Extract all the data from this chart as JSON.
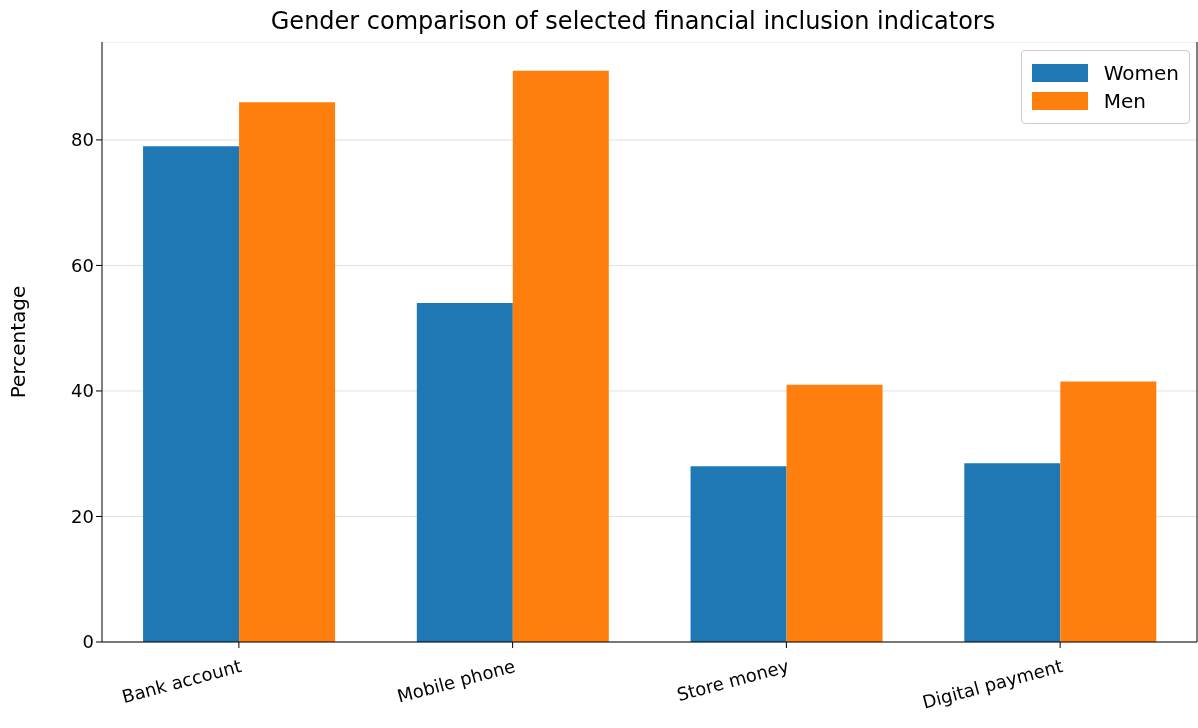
{
  "chart_data": {
    "type": "bar",
    "title": "Gender comparison of selected financial inclusion indicators",
    "ylabel": "Percentage",
    "categories": [
      "Bank account",
      "Mobile phone",
      "Store money",
      "Digital payment"
    ],
    "series": [
      {
        "name": "Women",
        "color": "#1f77b4",
        "values": [
          79,
          54,
          28,
          28.5
        ]
      },
      {
        "name": "Men",
        "color": "#ff7f0e",
        "values": [
          86,
          91,
          41,
          41.5
        ]
      }
    ],
    "ylim": [
      0,
      95.6
    ],
    "yticks": [
      0,
      20,
      40,
      60,
      80
    ],
    "grid": "y",
    "legend": "top right"
  }
}
